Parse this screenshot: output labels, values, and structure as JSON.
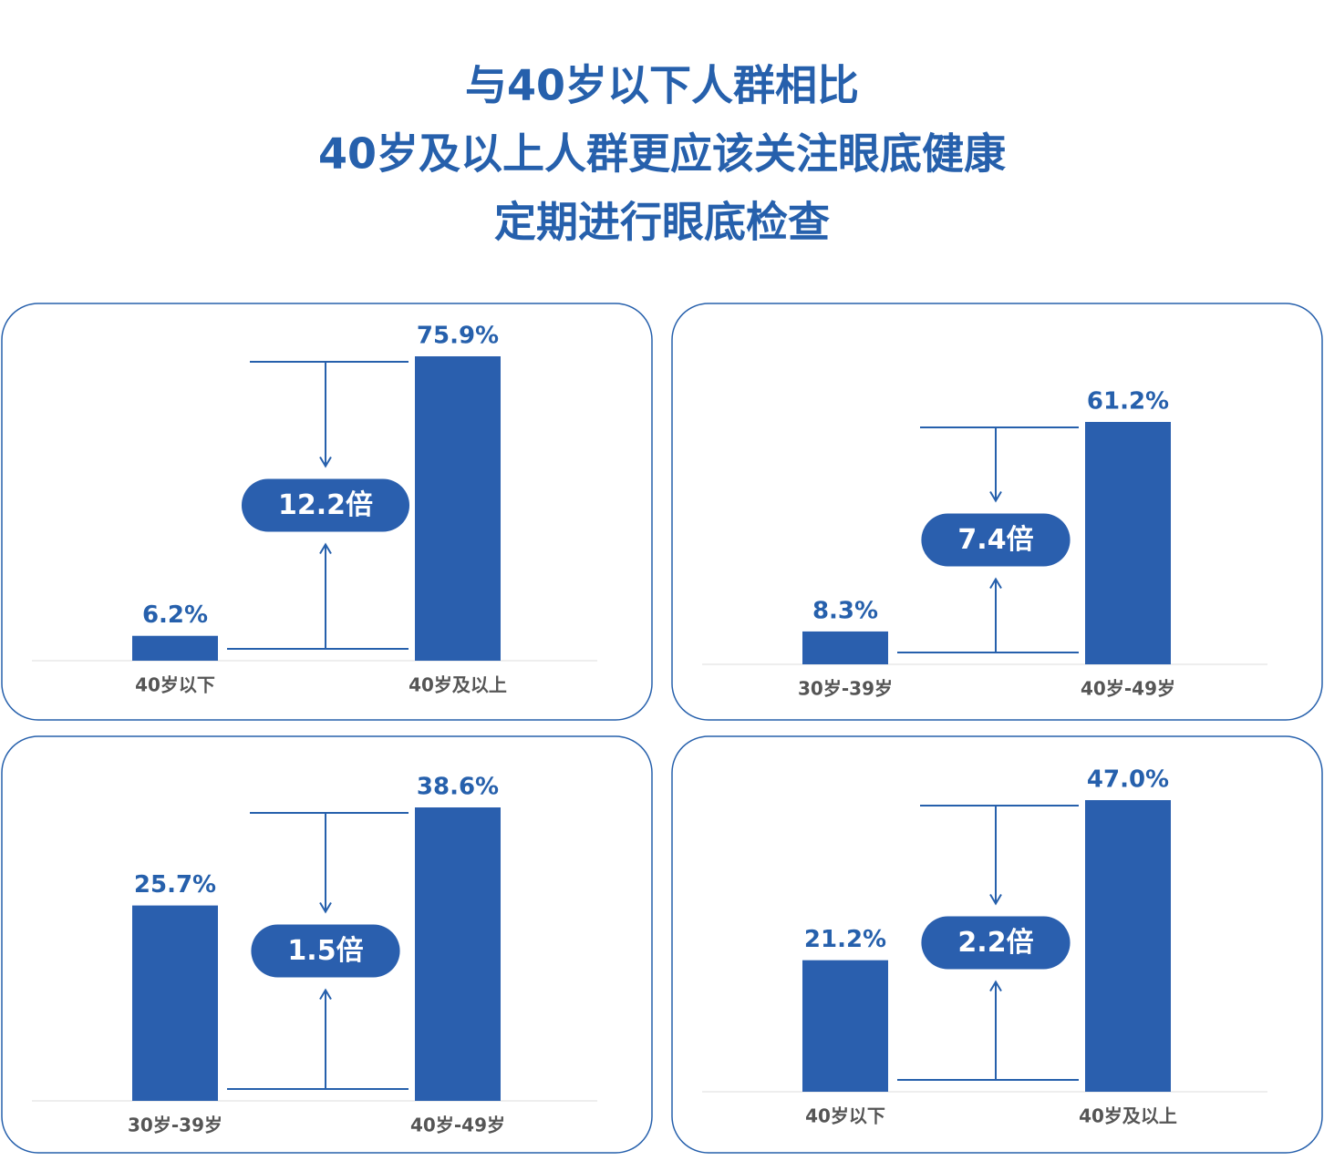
{
  "page_title": [
    "与40岁以下人群相比",
    "40岁及以上人群更应该关注眼底健康",
    "定期进行眼底检查"
  ],
  "chart_data": [
    {
      "type": "bar",
      "categories": [
        "40岁以下",
        "40岁及以上"
      ],
      "values": [
        6.2,
        75.9
      ],
      "value_labels": [
        "6.2%",
        "75.9%"
      ],
      "annotation": "12.2倍",
      "color": "#2a5fae"
    },
    {
      "type": "bar",
      "categories": [
        "30岁-39岁",
        "40岁-49岁"
      ],
      "values": [
        8.3,
        61.2
      ],
      "value_labels": [
        "8.3%",
        "61.2%"
      ],
      "annotation": "7.4倍",
      "color": "#2a5fae"
    },
    {
      "type": "bar",
      "categories": [
        "30岁-39岁",
        "40岁-49岁"
      ],
      "values": [
        25.7,
        38.6
      ],
      "value_labels": [
        "25.7%",
        "38.6%"
      ],
      "annotation": "1.5倍",
      "color": "#2a5fae"
    },
    {
      "type": "bar",
      "categories": [
        "40岁以下",
        "40岁及以上"
      ],
      "values": [
        21.2,
        47.0
      ],
      "value_labels": [
        "21.2%",
        "47.0%"
      ],
      "annotation": "2.2倍",
      "color": "#2a5fae"
    }
  ]
}
